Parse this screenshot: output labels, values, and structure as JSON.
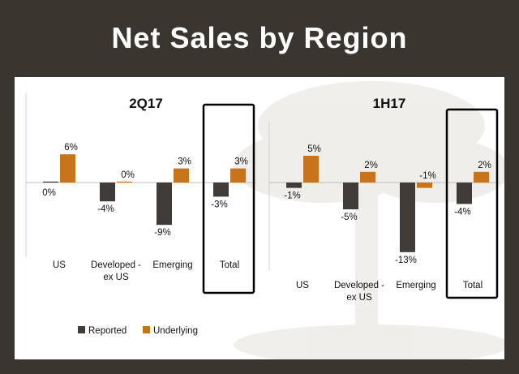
{
  "title": "Net Sales by Region",
  "colors": {
    "reported": "#403b36",
    "underlying": "#c8741b",
    "background": "#3b3530",
    "highlight_box": "#000000"
  },
  "legend": [
    {
      "name": "Reported",
      "color": "#403b36"
    },
    {
      "name": "Underlying",
      "color": "#c8741b"
    }
  ],
  "chart_data": [
    {
      "type": "bar",
      "title": "2Q17",
      "categories": [
        "US",
        "Developed - ex US",
        "Emerging",
        "Total"
      ],
      "category_lines": [
        [
          "US"
        ],
        [
          "Developed -",
          "ex US"
        ],
        [
          "Emerging"
        ],
        [
          "Total"
        ]
      ],
      "series": [
        {
          "name": "Reported",
          "values": [
            0,
            -4,
            -9,
            -3
          ],
          "labels": [
            "0%",
            "-4%",
            "-9%",
            "-3%"
          ]
        },
        {
          "name": "Underlying",
          "values": [
            6,
            0,
            3,
            3
          ],
          "labels": [
            "6%",
            "0%",
            "3%",
            "3%"
          ]
        }
      ],
      "highlighted_category": "Total",
      "legend_position": "bottom"
    },
    {
      "type": "bar",
      "title": "1H17",
      "categories": [
        "US",
        "Developed - ex US",
        "Emerging",
        "Total"
      ],
      "category_lines": [
        [
          "US"
        ],
        [
          "Developed -",
          "ex US"
        ],
        [
          "Emerging"
        ],
        [
          "Total"
        ]
      ],
      "series": [
        {
          "name": "Reported",
          "values": [
            -1,
            -5,
            -13,
            -4
          ],
          "labels": [
            "-1%",
            "-5%",
            "-13%",
            "-4%"
          ]
        },
        {
          "name": "Underlying",
          "values": [
            5,
            2,
            -1,
            2
          ],
          "labels": [
            "5%",
            "2%",
            "-1%",
            "2%"
          ]
        }
      ],
      "highlighted_category": "Total"
    }
  ]
}
